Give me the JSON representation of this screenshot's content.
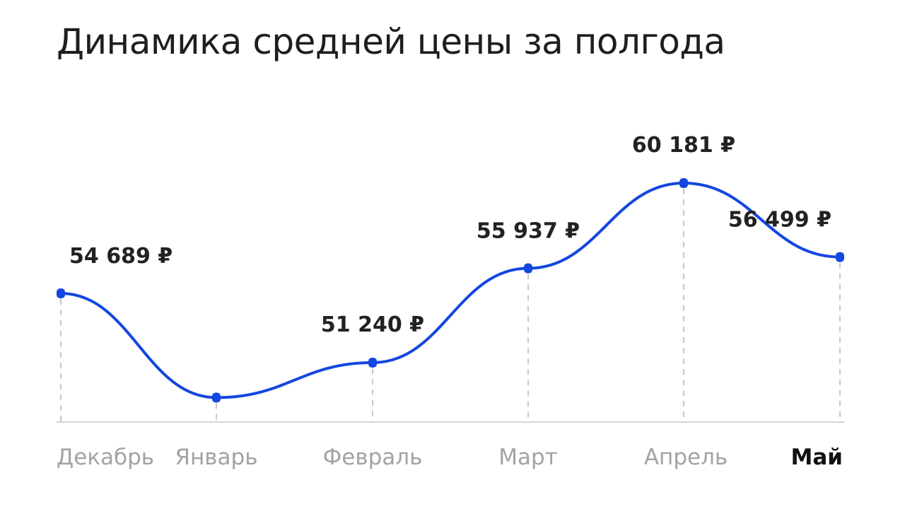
{
  "title": "Динамика средней цены за полгода",
  "chart_data": {
    "type": "line",
    "title": "Динамика средней цены за полгода",
    "categories": [
      "Декабрь",
      "Январь",
      "Февраль",
      "Март",
      "Апрель",
      "Май"
    ],
    "series": [
      {
        "values": [
          54689,
          49500,
          51240,
          55937,
          60181,
          56499
        ],
        "labels": [
          "54 689 ₽",
          "",
          "51 240 ₽",
          "55 937 ₽",
          "60 181 ₽",
          "56 499 ₽"
        ]
      }
    ],
    "current_category": "Май",
    "unit": "₽",
    "grid": false,
    "colors": {
      "line": "#1447e0",
      "baseline": "#d5d5d5",
      "dash": "#c8c8c8",
      "month": "#a3a3a3",
      "month_current": "#111111",
      "value": "#222222"
    }
  }
}
